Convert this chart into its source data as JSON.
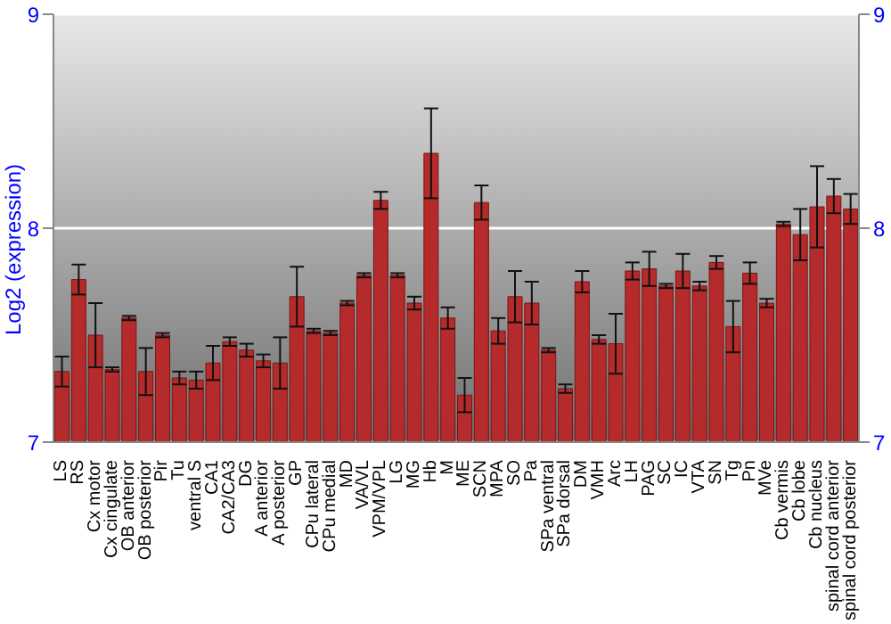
{
  "chart_data": {
    "type": "bar",
    "ylabel": "Log2 (expression)",
    "categories": [
      "LS",
      "RS",
      "Cx motor",
      "Cx cingulate",
      "OB anterior",
      "OB posterior",
      "Pir",
      "Tu",
      "ventral S",
      "CA1",
      "CA2/CA3",
      "DG",
      "A anterior",
      "A posterior",
      "GP",
      "CPu lateral",
      "CPu medial",
      "MD",
      "VA/VL",
      "VPM/VPL",
      "LG",
      "MG",
      "Hb",
      "M",
      "ME",
      "SCN",
      "MPA",
      "SO",
      "Pa",
      "SPa ventral",
      "SPa dorsal",
      "DM",
      "VMH",
      "Arc",
      "LH",
      "PAG",
      "SC",
      "IC",
      "VTA",
      "SN",
      "Tg",
      "Pn",
      "MVe",
      "Cb vermis",
      "Cb lobe",
      "Cb nucleus",
      "spinal cord anterior",
      "spinal cord posterior"
    ],
    "values": [
      7.33,
      7.76,
      7.5,
      7.34,
      7.58,
      7.33,
      7.5,
      7.3,
      7.29,
      7.37,
      7.47,
      7.43,
      7.38,
      7.37,
      7.68,
      7.52,
      7.51,
      7.65,
      7.78,
      8.13,
      7.78,
      7.65,
      8.35,
      7.58,
      7.22,
      8.12,
      7.52,
      7.68,
      7.65,
      7.43,
      7.25,
      7.75,
      7.48,
      7.46,
      7.8,
      7.81,
      7.73,
      7.8,
      7.73,
      7.84,
      7.54,
      7.79,
      7.65,
      8.02,
      7.97,
      8.1,
      8.15,
      8.09
    ],
    "errors": [
      0.07,
      0.07,
      0.15,
      0.01,
      0.01,
      0.11,
      0.01,
      0.03,
      0.04,
      0.08,
      0.02,
      0.03,
      0.03,
      0.12,
      0.14,
      0.01,
      0.01,
      0.01,
      0.01,
      0.04,
      0.01,
      0.03,
      0.21,
      0.05,
      0.08,
      0.08,
      0.06,
      0.12,
      0.1,
      0.01,
      0.02,
      0.05,
      0.02,
      0.14,
      0.04,
      0.08,
      0.01,
      0.08,
      0.02,
      0.03,
      0.12,
      0.05,
      0.02,
      0.01,
      0.12,
      0.19,
      0.08,
      0.07
    ],
    "color": "#b52a2a",
    "ylim": [
      7,
      9
    ],
    "yticks": [
      7,
      8,
      9
    ],
    "y2lim": [
      7,
      9
    ],
    "y2ticks": [
      7,
      8,
      9
    ],
    "grid": "y"
  }
}
